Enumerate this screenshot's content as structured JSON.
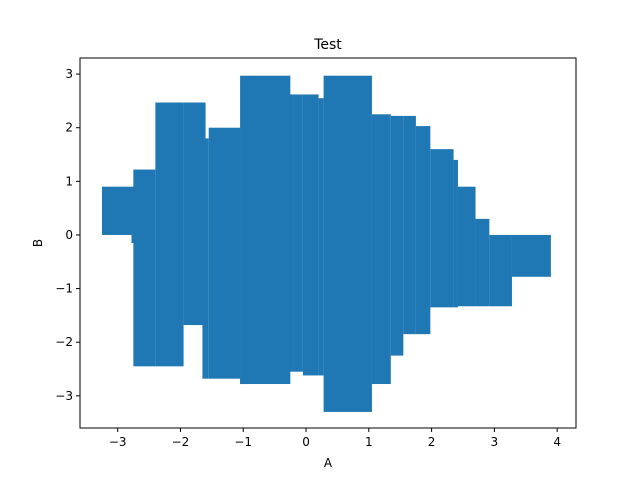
{
  "chart_data": {
    "type": "bar",
    "title": "Test",
    "xlabel": "A",
    "ylabel": "B",
    "xlim": [
      -3.6,
      4.3
    ],
    "ylim": [
      -3.6,
      3.3
    ],
    "x_ticks": [
      -3,
      -2,
      -1,
      0,
      1,
      2,
      3,
      4
    ],
    "y_ticks": [
      -3,
      -2,
      -1,
      0,
      1,
      2,
      3
    ],
    "x_tick_labels": [
      "−3",
      "−2",
      "−1",
      "0",
      "1",
      "2",
      "3",
      "4"
    ],
    "y_tick_labels": [
      "−3",
      "−2",
      "−1",
      "0",
      "1",
      "2",
      "3"
    ],
    "grid": false,
    "color": "#1f77b4",
    "bars": [
      {
        "x0": -3.25,
        "x1": -2.78,
        "bottom": 0.0,
        "top": 0.9
      },
      {
        "x0": -2.78,
        "x1": -2.55,
        "bottom": -0.15,
        "top": 0.9
      },
      {
        "x0": -2.75,
        "x1": -2.4,
        "bottom": -2.45,
        "top": 1.22
      },
      {
        "x0": -2.4,
        "x1": -1.95,
        "bottom": -2.45,
        "top": 2.47
      },
      {
        "x0": -1.95,
        "x1": -1.6,
        "bottom": -1.68,
        "top": 2.47
      },
      {
        "x0": -1.8,
        "x1": -1.65,
        "bottom": -1.68,
        "top": 2.08
      },
      {
        "x0": -1.65,
        "x1": -1.55,
        "bottom": -2.68,
        "top": 1.8
      },
      {
        "x0": -1.55,
        "x1": -1.05,
        "bottom": -2.68,
        "top": 2.0
      },
      {
        "x0": -1.05,
        "x1": -1.0,
        "bottom": -2.78,
        "top": 2.0
      },
      {
        "x0": -1.05,
        "x1": -0.25,
        "bottom": -2.78,
        "top": 2.97
      },
      {
        "x0": -0.3,
        "x1": -0.2,
        "bottom": -2.55,
        "top": 2.62
      },
      {
        "x0": -0.2,
        "x1": -0.05,
        "bottom": -2.55,
        "top": 2.62
      },
      {
        "x0": -0.05,
        "x1": 0.2,
        "bottom": -2.62,
        "top": 2.62
      },
      {
        "x0": 0.2,
        "x1": 0.28,
        "bottom": -2.62,
        "top": 2.55
      },
      {
        "x0": 0.28,
        "x1": 1.05,
        "bottom": -3.3,
        "top": 2.97
      },
      {
        "x0": 1.05,
        "x1": 1.35,
        "bottom": -2.78,
        "top": 2.25
      },
      {
        "x0": 1.35,
        "x1": 1.55,
        "bottom": -2.25,
        "top": 2.22
      },
      {
        "x0": 1.55,
        "x1": 1.75,
        "bottom": -1.85,
        "top": 2.22
      },
      {
        "x0": 1.75,
        "x1": 1.98,
        "bottom": -1.85,
        "top": 2.03
      },
      {
        "x0": 1.98,
        "x1": 2.35,
        "bottom": -1.35,
        "top": 1.6
      },
      {
        "x0": 2.35,
        "x1": 2.42,
        "bottom": -1.35,
        "top": 1.4
      },
      {
        "x0": 2.42,
        "x1": 2.7,
        "bottom": -1.33,
        "top": 0.9
      },
      {
        "x0": 2.7,
        "x1": 2.92,
        "bottom": -1.33,
        "top": 0.3
      },
      {
        "x0": 2.92,
        "x1": 3.28,
        "bottom": -1.33,
        "top": 0.0
      },
      {
        "x0": 3.28,
        "x1": 3.9,
        "bottom": -0.78,
        "top": 0.0
      }
    ]
  }
}
